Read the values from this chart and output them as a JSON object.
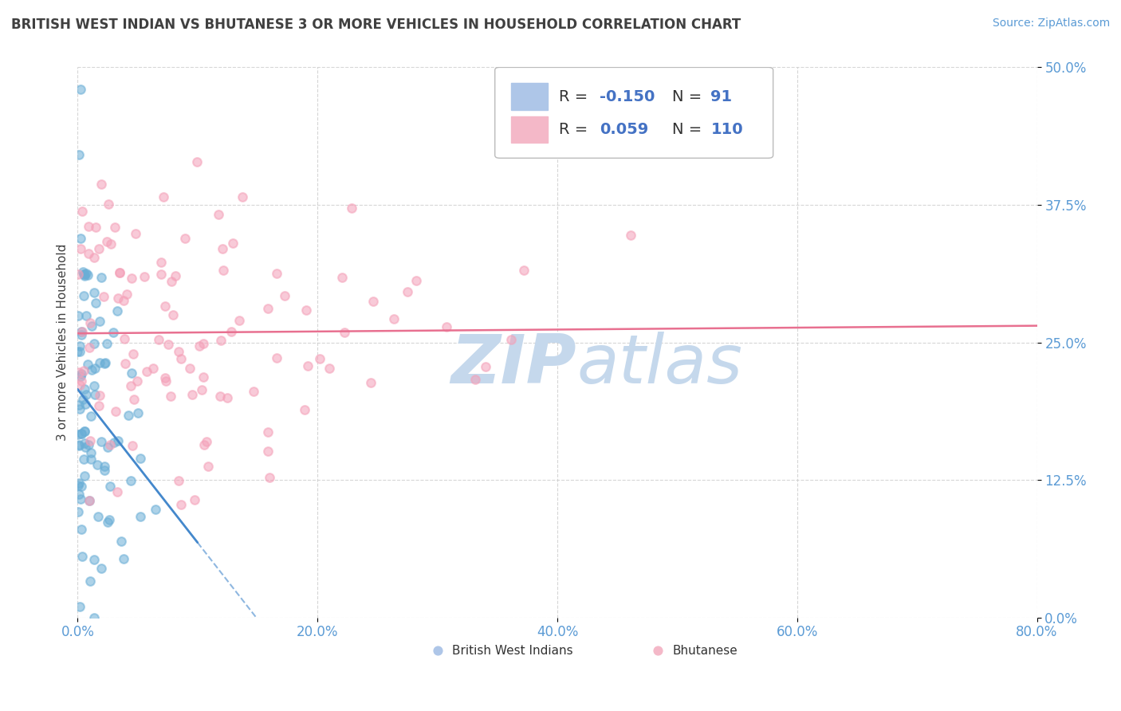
{
  "title": "BRITISH WEST INDIAN VS BHUTANESE 3 OR MORE VEHICLES IN HOUSEHOLD CORRELATION CHART",
  "source": "Source: ZipAtlas.com",
  "ylabel": "3 or more Vehicles in Household",
  "watermark": "ZIP­atlas",
  "xlim": [
    0,
    80
  ],
  "ylim": [
    0,
    50
  ],
  "xticks": [
    0,
    20,
    40,
    60,
    80
  ],
  "yticks": [
    0,
    12.5,
    25,
    37.5,
    50
  ],
  "xtick_labels": [
    "0.0%",
    "20.0%",
    "40.0%",
    "60.0%",
    "80.0%"
  ],
  "ytick_labels": [
    "0.0%",
    "12.5%",
    "25.0%",
    "37.5%",
    "50.0%"
  ],
  "background_color": "#ffffff",
  "grid_color": "#cccccc",
  "scatter_blue_color": "#6aaed6",
  "scatter_pink_color": "#f4a0b8",
  "line_blue_color": "#4488cc",
  "line_pink_color": "#e87090",
  "title_color": "#404040",
  "source_color": "#5b9bd5",
  "axis_color": "#5b9bd5",
  "watermark_color": "#c5d8ec",
  "seed": 42,
  "n_blue": 91,
  "n_pink": 110,
  "R_blue": -0.15,
  "R_pink": 0.059,
  "legend_blue_box": "#aec6e8",
  "legend_pink_box": "#f4b8c8"
}
